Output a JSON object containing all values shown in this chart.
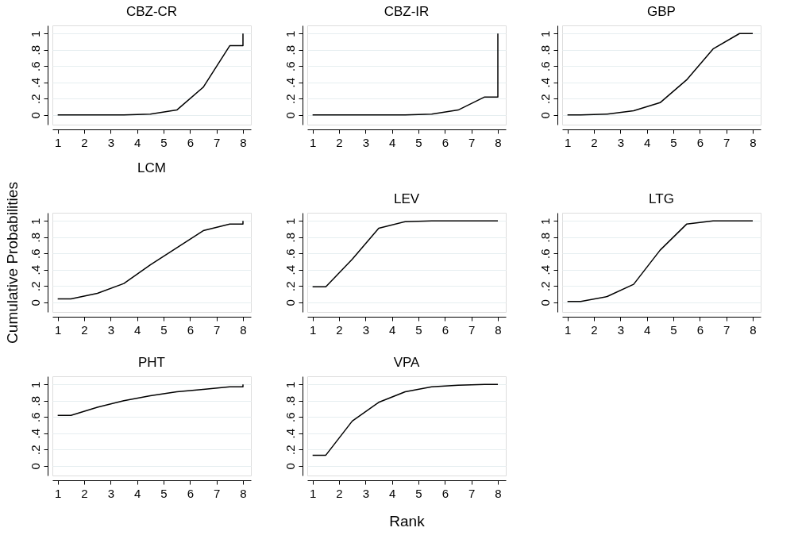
{
  "chart_data": [
    {
      "type": "line",
      "title": "CBZ-CR",
      "series": [
        {
          "color": "#000000",
          "x": [
            1,
            1.5,
            2.5,
            3.5,
            4.5,
            5.5,
            6.5,
            7.5,
            8,
            8
          ],
          "values": [
            0,
            0,
            0,
            0,
            0.01,
            0.06,
            0.34,
            0.85,
            0.85,
            1
          ]
        }
      ],
      "xlim": [
        0.8,
        8.3
      ],
      "ylim": [
        -0.12,
        1.1
      ],
      "xticks": [
        1,
        2,
        3,
        4,
        5,
        6,
        7,
        8
      ],
      "yticks": [
        0,
        {
          "value": 0.2,
          "label": ".2"
        },
        {
          "value": 0.4,
          "label": ".4"
        },
        {
          "value": 0.6,
          "label": ".6"
        },
        {
          "value": 0.8,
          "label": ".8"
        },
        1
      ],
      "grid": "y"
    },
    {
      "type": "line",
      "title": "CBZ-IR",
      "series": [
        {
          "color": "#000000",
          "x": [
            1,
            1.5,
            2.5,
            3.5,
            4.5,
            5.5,
            6.5,
            7.5,
            8,
            8
          ],
          "values": [
            0,
            0,
            0,
            0,
            0,
            0.01,
            0.06,
            0.22,
            0.22,
            1
          ]
        }
      ],
      "xlim": [
        0.8,
        8.3
      ],
      "ylim": [
        -0.12,
        1.1
      ],
      "xticks": [
        1,
        2,
        3,
        4,
        5,
        6,
        7,
        8
      ],
      "yticks": [
        0,
        {
          "value": 0.2,
          "label": ".2"
        },
        {
          "value": 0.4,
          "label": ".4"
        },
        {
          "value": 0.6,
          "label": ".6"
        },
        {
          "value": 0.8,
          "label": ".8"
        },
        1
      ],
      "grid": "y"
    },
    {
      "type": "line",
      "title": "GBP",
      "series": [
        {
          "color": "#000000",
          "x": [
            1,
            1.5,
            2.5,
            3.5,
            4.5,
            5.5,
            6.5,
            7.5,
            8
          ],
          "values": [
            0,
            0,
            0.01,
            0.05,
            0.15,
            0.43,
            0.81,
            1,
            1
          ]
        }
      ],
      "xlim": [
        0.8,
        8.3
      ],
      "ylim": [
        -0.12,
        1.1
      ],
      "xticks": [
        1,
        2,
        3,
        4,
        5,
        6,
        7,
        8
      ],
      "yticks": [
        0,
        {
          "value": 0.2,
          "label": ".2"
        },
        {
          "value": 0.4,
          "label": ".4"
        },
        {
          "value": 0.6,
          "label": ".6"
        },
        {
          "value": 0.8,
          "label": ".8"
        },
        1
      ],
      "grid": "y"
    },
    {
      "type": "line",
      "title": "LCM",
      "ylabel": "Cumulative Probabilities",
      "series": [
        {
          "color": "#000000",
          "x": [
            1,
            1.5,
            2.5,
            3.5,
            4.5,
            5.5,
            6.5,
            7.5,
            8,
            8
          ],
          "values": [
            0.04,
            0.04,
            0.11,
            0.23,
            0.46,
            0.67,
            0.88,
            0.96,
            0.96,
            1
          ]
        }
      ],
      "xlim": [
        0.8,
        8.3
      ],
      "ylim": [
        -0.12,
        1.1
      ],
      "xticks": [
        1,
        2,
        3,
        4,
        5,
        6,
        7,
        8
      ],
      "yticks": [
        0,
        {
          "value": 0.2,
          "label": ".2"
        },
        {
          "value": 0.4,
          "label": ".4"
        },
        {
          "value": 0.6,
          "label": ".6"
        },
        {
          "value": 0.8,
          "label": ".8"
        },
        1
      ],
      "grid": "y"
    },
    {
      "type": "line",
      "title": "LEV",
      "series": [
        {
          "color": "#000000",
          "x": [
            1,
            1.5,
            2.5,
            3.5,
            4.5,
            5.5,
            6.5,
            7.5,
            8
          ],
          "values": [
            0.19,
            0.19,
            0.53,
            0.91,
            0.99,
            1,
            1,
            1,
            1
          ]
        }
      ],
      "xlim": [
        0.8,
        8.3
      ],
      "ylim": [
        -0.12,
        1.1
      ],
      "xticks": [
        1,
        2,
        3,
        4,
        5,
        6,
        7,
        8
      ],
      "yticks": [
        0,
        {
          "value": 0.2,
          "label": ".2"
        },
        {
          "value": 0.4,
          "label": ".4"
        },
        {
          "value": 0.6,
          "label": ".6"
        },
        {
          "value": 0.8,
          "label": ".8"
        },
        1
      ],
      "grid": "y"
    },
    {
      "type": "line",
      "title": "LTG",
      "series": [
        {
          "color": "#000000",
          "x": [
            1,
            1.5,
            2.5,
            3.5,
            4.5,
            5.5,
            6.5,
            7.5,
            8
          ],
          "values": [
            0.01,
            0.01,
            0.07,
            0.22,
            0.64,
            0.96,
            1,
            1,
            1
          ]
        }
      ],
      "xlim": [
        0.8,
        8.3
      ],
      "ylim": [
        -0.12,
        1.1
      ],
      "xticks": [
        1,
        2,
        3,
        4,
        5,
        6,
        7,
        8
      ],
      "yticks": [
        0,
        {
          "value": 0.2,
          "label": ".2"
        },
        {
          "value": 0.4,
          "label": ".4"
        },
        {
          "value": 0.6,
          "label": ".6"
        },
        {
          "value": 0.8,
          "label": ".8"
        },
        1
      ],
      "grid": "y"
    },
    {
      "type": "line",
      "title": "PHT",
      "series": [
        {
          "color": "#000000",
          "x": [
            1,
            1.5,
            2.5,
            3.5,
            4.5,
            5.5,
            6.5,
            7.5,
            8,
            8
          ],
          "values": [
            0.62,
            0.62,
            0.72,
            0.8,
            0.86,
            0.91,
            0.94,
            0.97,
            0.97,
            1
          ]
        }
      ],
      "xlim": [
        0.8,
        8.3
      ],
      "ylim": [
        -0.12,
        1.1
      ],
      "xticks": [
        1,
        2,
        3,
        4,
        5,
        6,
        7,
        8
      ],
      "yticks": [
        0,
        {
          "value": 0.2,
          "label": ".2"
        },
        {
          "value": 0.4,
          "label": ".4"
        },
        {
          "value": 0.6,
          "label": ".6"
        },
        {
          "value": 0.8,
          "label": ".8"
        },
        1
      ],
      "grid": "y"
    },
    {
      "type": "line",
      "title": "VPA",
      "xlabel": "Rank",
      "series": [
        {
          "color": "#000000",
          "x": [
            1,
            1.5,
            2.5,
            3.5,
            4.5,
            5.5,
            6.5,
            7.5,
            8
          ],
          "values": [
            0.13,
            0.13,
            0.55,
            0.78,
            0.91,
            0.97,
            0.99,
            1,
            1
          ]
        }
      ],
      "xlim": [
        0.8,
        8.3
      ],
      "ylim": [
        -0.12,
        1.1
      ],
      "xticks": [
        1,
        2,
        3,
        4,
        5,
        6,
        7,
        8
      ],
      "yticks": [
        0,
        {
          "value": 0.2,
          "label": ".2"
        },
        {
          "value": 0.4,
          "label": ".4"
        },
        {
          "value": 0.6,
          "label": ".6"
        },
        {
          "value": 0.8,
          "label": ".8"
        },
        1
      ],
      "grid": "y"
    }
  ]
}
